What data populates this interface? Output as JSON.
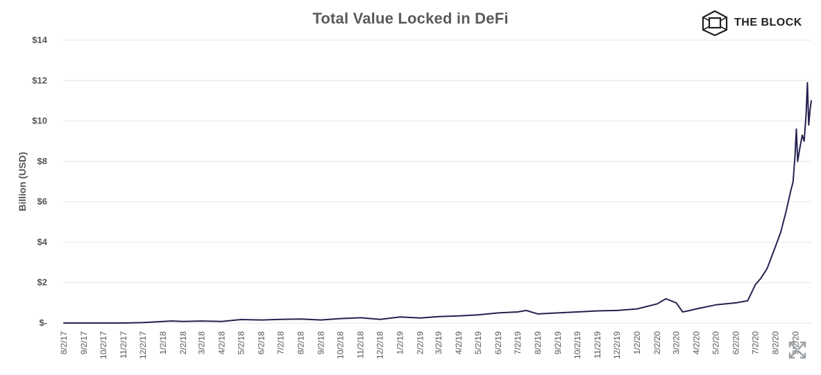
{
  "brand": {
    "name": "THE BLOCK",
    "logo_icon": "cube-logo-icon"
  },
  "chart_data": {
    "type": "line",
    "title": "Total Value Locked in DeFi",
    "xlabel": "",
    "ylabel": "Billion (USD)",
    "ylim": [
      0,
      14
    ],
    "y_ticks": [
      0,
      2,
      4,
      6,
      8,
      10,
      12,
      14
    ],
    "y_tick_labels": [
      "$-",
      "$2",
      "$4",
      "$6",
      "$8",
      "$10",
      "$12",
      "$14"
    ],
    "x_tick_labels": [
      "8/2/17",
      "9/2/17",
      "10/2/17",
      "11/2/17",
      "12/2/17",
      "1/2/18",
      "2/2/18",
      "3/2/18",
      "4/2/18",
      "5/2/18",
      "6/2/18",
      "7/2/18",
      "8/2/18",
      "9/2/18",
      "10/2/18",
      "11/2/18",
      "12/2/18",
      "1/2/19",
      "2/2/19",
      "3/2/19",
      "4/2/19",
      "5/2/19",
      "6/2/19",
      "7/2/19",
      "8/2/19",
      "9/2/19",
      "10/2/19",
      "11/2/19",
      "12/2/19",
      "1/2/20",
      "2/2/20",
      "3/2/20",
      "4/2/20",
      "5/2/20",
      "6/2/20",
      "7/2/20",
      "8/2/20",
      "9/2/20"
    ],
    "grid": true,
    "legend": "none",
    "line_color": "#23214f",
    "series": [
      {
        "x": [
          "2017-08-02",
          "2017-09-02",
          "2017-10-02",
          "2017-11-02",
          "2017-12-02",
          "2018-01-02",
          "2018-01-15",
          "2018-02-02",
          "2018-03-02",
          "2018-04-02",
          "2018-05-02",
          "2018-06-02",
          "2018-07-02",
          "2018-08-02",
          "2018-09-02",
          "2018-10-02",
          "2018-11-02",
          "2018-12-02",
          "2019-01-02",
          "2019-02-02",
          "2019-03-02",
          "2019-04-02",
          "2019-05-02",
          "2019-06-02",
          "2019-07-02",
          "2019-07-15",
          "2019-08-02",
          "2019-09-02",
          "2019-10-02",
          "2019-11-02",
          "2019-12-02",
          "2020-01-02",
          "2020-02-02",
          "2020-02-15",
          "2020-03-02",
          "2020-03-12",
          "2020-03-20",
          "2020-04-02",
          "2020-05-02",
          "2020-06-02",
          "2020-06-20",
          "2020-07-02",
          "2020-07-10",
          "2020-07-20",
          "2020-08-02",
          "2020-08-10",
          "2020-08-18",
          "2020-08-25",
          "2020-08-29",
          "2020-09-01",
          "2020-09-03",
          "2020-09-05",
          "2020-09-08",
          "2020-09-12",
          "2020-09-15",
          "2020-09-18",
          "2020-09-20",
          "2020-09-22",
          "2020-09-24",
          "2020-09-26"
        ],
        "y": [
          0.0,
          0.0,
          0.0,
          0.0,
          0.02,
          0.08,
          0.1,
          0.08,
          0.1,
          0.08,
          0.17,
          0.15,
          0.18,
          0.2,
          0.15,
          0.22,
          0.26,
          0.18,
          0.3,
          0.25,
          0.32,
          0.35,
          0.4,
          0.5,
          0.55,
          0.62,
          0.45,
          0.5,
          0.55,
          0.6,
          0.62,
          0.7,
          0.95,
          1.2,
          1.0,
          0.55,
          0.6,
          0.7,
          0.9,
          1.0,
          1.1,
          1.9,
          2.2,
          2.7,
          3.8,
          4.5,
          5.5,
          6.5,
          7.0,
          8.3,
          9.6,
          8.0,
          8.6,
          9.3,
          9.0,
          10.3,
          11.9,
          9.8,
          10.5,
          11.0
        ]
      }
    ]
  }
}
